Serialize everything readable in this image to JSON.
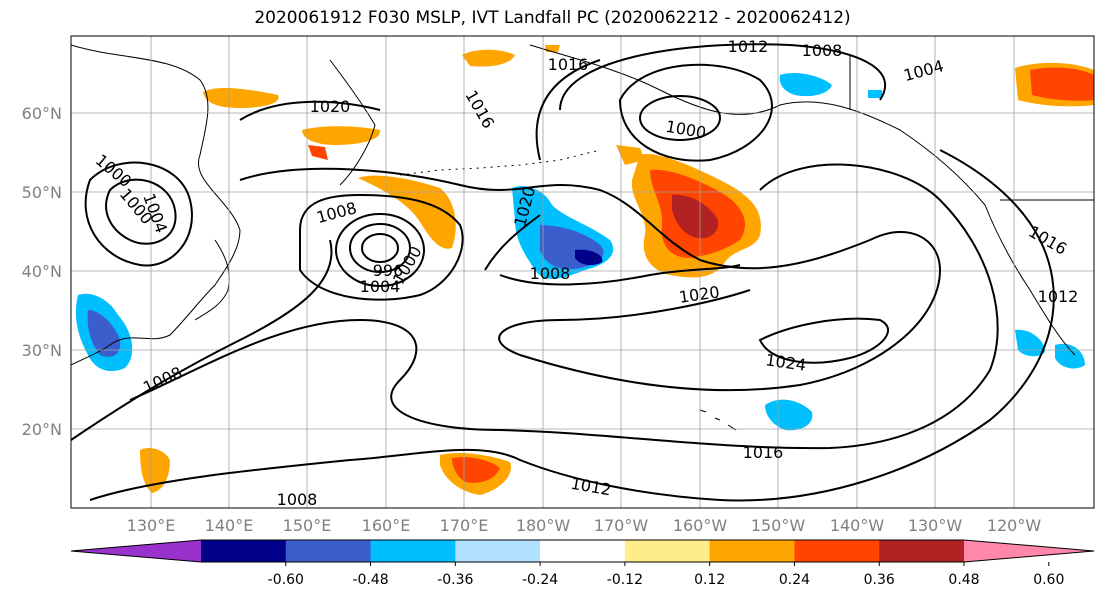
{
  "title": "2020061912 F030 MSLP, IVT Landfall PC (2020062212 - 2020062412)",
  "lat_labels": [
    "60°N",
    "50°N",
    "40°N",
    "30°N",
    "20°N"
  ],
  "lon_labels": [
    "130°E",
    "140°E",
    "150°E",
    "160°E",
    "170°E",
    "180°W",
    "170°W",
    "160°W",
    "150°W",
    "140°W",
    "130°W",
    "120°W"
  ],
  "contour_labels": [
    "1012",
    "1008",
    "1004",
    "1016",
    "1020",
    "1000",
    "1016",
    "1020",
    "1004",
    "1000",
    "1008",
    "996",
    "1000",
    "1004",
    "1008",
    "1020",
    "1016",
    "1012",
    "1024",
    "1008",
    "1016",
    "1012",
    "1008",
    "1000"
  ],
  "colorbar": {
    "ticks": [
      "-0.60",
      "-0.48",
      "-0.36",
      "-0.24",
      "-0.12",
      "0.12",
      "0.24",
      "0.36",
      "0.48",
      "0.60"
    ],
    "colors": [
      "#9932cc",
      "#00008b",
      "#3a5fcd",
      "#00bfff",
      "#b0e2ff",
      "#ffffff",
      "#ffec8b",
      "#ffa500",
      "#ff4500",
      "#b22222",
      "#ff88aa"
    ]
  },
  "colors": {
    "contour": "#000000",
    "grid": "#a0a0a0",
    "coast": "#000000"
  }
}
